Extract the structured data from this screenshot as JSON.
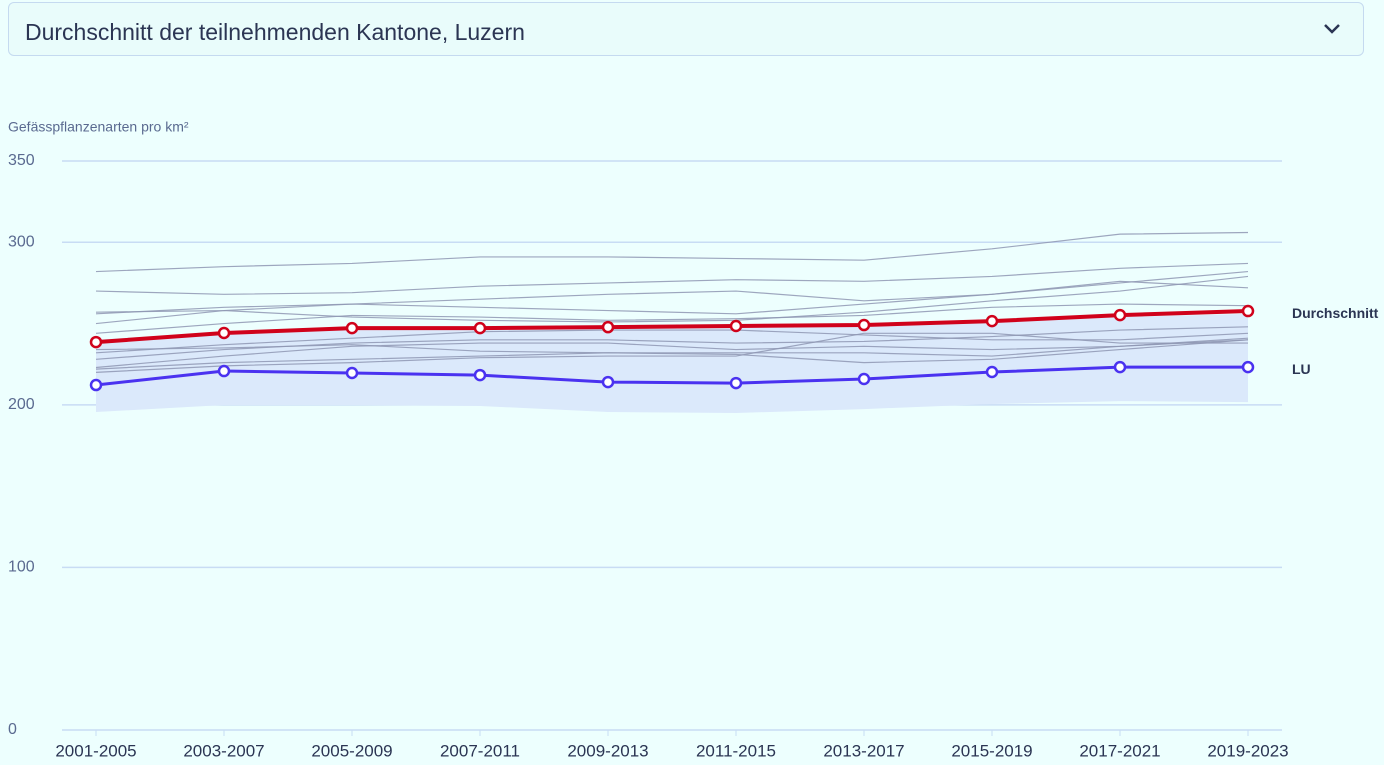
{
  "dropdown": {
    "selected": "Durchschnitt der teilnehmenden Kantone, Luzern"
  },
  "chart_data": {
    "type": "line",
    "y_label": "Gefässpflanzenarten pro km²",
    "categories": [
      "2001-2005",
      "2003-2007",
      "2005-2009",
      "2007-2011",
      "2009-2013",
      "2011-2015",
      "2013-2017",
      "2015-2019",
      "2017-2021",
      "2019-2023"
    ],
    "ylim": [
      0,
      350
    ],
    "yticks": [
      0,
      100,
      200,
      300,
      350
    ],
    "grid": true,
    "band": {
      "color": "#dbe9fb",
      "lower": [
        195.6,
        199.9,
        199.9,
        199.3,
        195.6,
        195.0,
        197.4,
        200.5,
        202.3,
        201.7
      ],
      "upper": [
        240,
        245,
        247,
        247,
        247,
        248,
        249,
        251,
        254,
        256
      ]
    },
    "series": [
      {
        "color": "#8e97b3",
        "values": [
          282,
          285,
          287,
          291,
          291,
          290,
          289,
          296,
          305,
          306
        ]
      },
      {
        "color": "#8e97b3",
        "values": [
          270,
          268,
          269,
          273,
          275,
          277,
          276,
          279,
          284,
          287
        ]
      },
      {
        "color": "#8e97b3",
        "values": [
          257,
          258,
          262,
          260,
          258,
          256,
          262,
          268,
          275,
          282
        ]
      },
      {
        "color": "#8e97b3",
        "values": [
          250,
          258,
          254,
          252,
          251,
          252,
          257,
          264,
          270,
          279
        ]
      },
      {
        "color": "#8e97b3",
        "values": [
          256,
          260,
          262,
          265,
          268,
          270,
          264,
          268,
          276,
          272
        ]
      },
      {
        "color": "#8e97b3",
        "values": [
          244,
          250,
          255,
          254,
          252,
          253,
          255,
          260,
          262,
          261
        ]
      },
      {
        "color": "#8e97b3",
        "values": [
          232,
          237,
          241,
          245,
          246,
          246,
          243,
          240,
          240,
          244
        ]
      },
      {
        "color": "#8e97b3",
        "values": [
          228,
          234,
          238,
          240,
          240,
          238,
          239,
          242,
          246,
          248
        ]
      },
      {
        "color": "#8e97b3",
        "values": [
          223,
          230,
          236,
          238,
          238,
          234,
          236,
          234,
          236,
          240
        ]
      },
      {
        "color": "#8e97b3",
        "values": [
          222,
          226,
          228,
          230,
          232,
          231,
          226,
          228,
          234,
          240
        ]
      },
      {
        "color": "#8e97b3",
        "values": [
          220,
          224,
          226,
          229,
          230,
          230,
          244,
          244,
          238,
          238
        ]
      },
      {
        "color": "#8e97b3",
        "values": [
          234,
          235,
          237,
          233,
          232,
          232,
          232,
          230,
          236,
          241
        ]
      },
      {
        "name": "Durchschnitt",
        "color": "#d0021b",
        "values": [
          238.6,
          244.2,
          247.2,
          247.2,
          247.8,
          248.5,
          249.1,
          251.5,
          255.2,
          257.7
        ]
      },
      {
        "name": "LU",
        "color": "#4a32f0",
        "values": [
          212.2,
          220.8,
          219.6,
          218.3,
          214.0,
          213.4,
          215.9,
          220.2,
          223.2,
          223.2
        ]
      }
    ]
  }
}
